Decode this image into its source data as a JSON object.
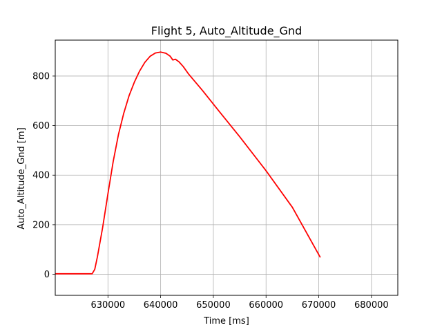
{
  "chart_data": {
    "type": "line",
    "title": "Flight 5, Auto_Altitude_Gnd",
    "xlabel": "Time [ms]",
    "ylabel": "Auto_Altitude_Gnd [m]",
    "xlim": [
      620000,
      685000
    ],
    "ylim": [
      -85,
      945
    ],
    "grid": true,
    "xticks": [
      630000,
      640000,
      650000,
      660000,
      670000,
      680000
    ],
    "xtick_labels": [
      "630000",
      "640000",
      "650000",
      "660000",
      "670000",
      "680000"
    ],
    "yticks": [
      0,
      200,
      400,
      600,
      800
    ],
    "ytick_labels": [
      "0",
      "200",
      "400",
      "600",
      "800"
    ],
    "series": [
      {
        "color": "#ff0000",
        "x": [
          620000,
          624000,
          627000,
          627500,
          628000,
          629000,
          630000,
          631000,
          632000,
          633000,
          634000,
          635000,
          636000,
          637000,
          638000,
          639000,
          640000,
          641000,
          641800,
          642300,
          642800,
          643500,
          644300,
          645300,
          648000,
          651000,
          655000,
          660000,
          665000,
          670300
        ],
        "y": [
          2,
          2,
          2,
          20,
          70,
          190,
          325,
          455,
          565,
          650,
          720,
          775,
          820,
          855,
          880,
          893,
          897,
          892,
          880,
          865,
          868,
          857,
          838,
          808,
          740,
          660,
          555,
          418,
          270,
          68
        ]
      }
    ]
  }
}
